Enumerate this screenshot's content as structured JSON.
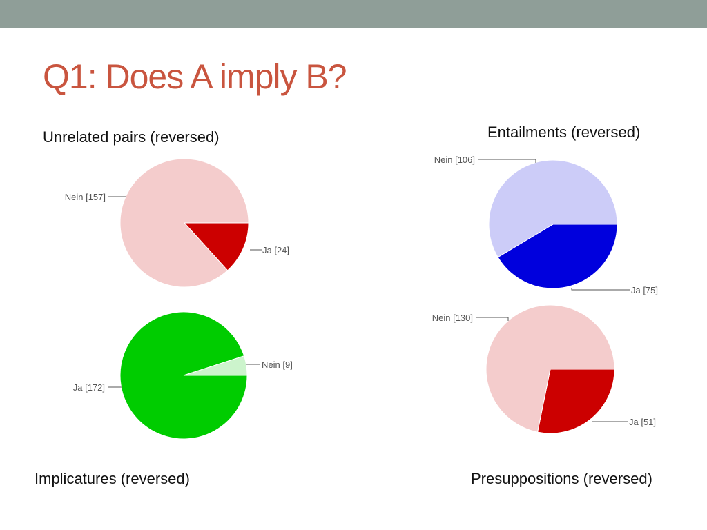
{
  "slide": {
    "title": "Q1: Does A imply B?"
  },
  "colors": {
    "top_bar": "#8f9e98",
    "title": "#c9553f"
  },
  "chart_data": [
    {
      "type": "pie",
      "title": "Unrelated pairs (reversed)",
      "slices": [
        {
          "label": "Ja [24]",
          "value": 24,
          "color": "#cc0000"
        },
        {
          "label": "Nein [157]",
          "value": 157,
          "color": "#f4cccc"
        }
      ]
    },
    {
      "type": "pie",
      "title": "Entailments (reversed)",
      "slices": [
        {
          "label": "Ja [75]",
          "value": 75,
          "color": "#0000dd"
        },
        {
          "label": "Nein [106]",
          "value": 106,
          "color": "#ccccf8"
        }
      ]
    },
    {
      "type": "pie",
      "title": "Implicatures (reversed)",
      "slices": [
        {
          "label": "Ja [172]",
          "value": 172,
          "color": "#00cc00"
        },
        {
          "label": "Nein [9]",
          "value": 9,
          "color": "#ccf4cc"
        }
      ]
    },
    {
      "type": "pie",
      "title": "Presuppositions (reversed)",
      "slices": [
        {
          "label": "Ja [51]",
          "value": 51,
          "color": "#cc0000"
        },
        {
          "label": "Nein [130]",
          "value": 130,
          "color": "#f4cccc"
        }
      ]
    }
  ]
}
